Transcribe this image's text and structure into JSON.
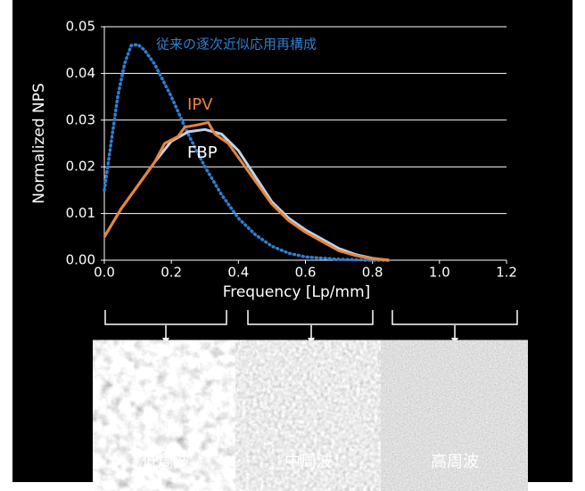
{
  "chart_data": {
    "type": "line",
    "xlabel": "Frequency [Lp/mm]",
    "ylabel": "Normalized NPS",
    "xlim": [
      0,
      1.2
    ],
    "ylim": [
      0,
      0.05
    ],
    "xticks": [
      {
        "value": 0,
        "label": "0.0"
      },
      0.2,
      0.4,
      0.6,
      0.8,
      {
        "value": 1,
        "label": "1.0"
      },
      1.2
    ],
    "yticks": [
      {
        "value": 0,
        "label": "0.00"
      },
      0.01,
      0.02,
      0.03,
      0.04,
      0.05
    ],
    "grid": true,
    "series": [
      {
        "name": "従来の逐次近似応用再構成",
        "color": "#2f7fd0",
        "dash": true,
        "x": [
          0,
          0.02,
          0.04,
          0.06,
          0.08,
          0.1,
          0.12,
          0.15,
          0.2,
          0.25,
          0.3,
          0.35,
          0.4,
          0.45,
          0.5,
          0.55,
          0.6,
          0.7,
          0.8,
          0.85
        ],
        "values": [
          0.015,
          0.025,
          0.035,
          0.042,
          0.046,
          0.0462,
          0.045,
          0.042,
          0.035,
          0.027,
          0.02,
          0.014,
          0.009,
          0.0055,
          0.003,
          0.0015,
          0.0007,
          0.0002,
          0,
          0
        ]
      },
      {
        "name": "FBP",
        "color": "#b9d5ef",
        "x": [
          0,
          0.05,
          0.1,
          0.15,
          0.2,
          0.25,
          0.3,
          0.35,
          0.4,
          0.45,
          0.5,
          0.55,
          0.6,
          0.65,
          0.7,
          0.75,
          0.8,
          0.85
        ],
        "values": [
          0.005,
          0.011,
          0.016,
          0.021,
          0.0255,
          0.0275,
          0.028,
          0.027,
          0.0235,
          0.018,
          0.0125,
          0.009,
          0.0065,
          0.0045,
          0.0025,
          0.0012,
          0.0004,
          0
        ]
      },
      {
        "name": "IPV",
        "color": "#ea8439",
        "x": [
          0,
          0.05,
          0.1,
          0.15,
          0.18,
          0.22,
          0.24,
          0.28,
          0.31,
          0.33,
          0.37,
          0.41,
          0.46,
          0.5,
          0.55,
          0.6,
          0.65,
          0.7,
          0.75,
          0.8,
          0.85
        ],
        "values": [
          0.005,
          0.011,
          0.016,
          0.021,
          0.025,
          0.0265,
          0.0285,
          0.029,
          0.0295,
          0.027,
          0.025,
          0.021,
          0.016,
          0.012,
          0.0085,
          0.006,
          0.004,
          0.002,
          0.001,
          0.0003,
          0
        ]
      }
    ]
  },
  "panels": [
    "低周波",
    "中周波",
    "高周波"
  ]
}
